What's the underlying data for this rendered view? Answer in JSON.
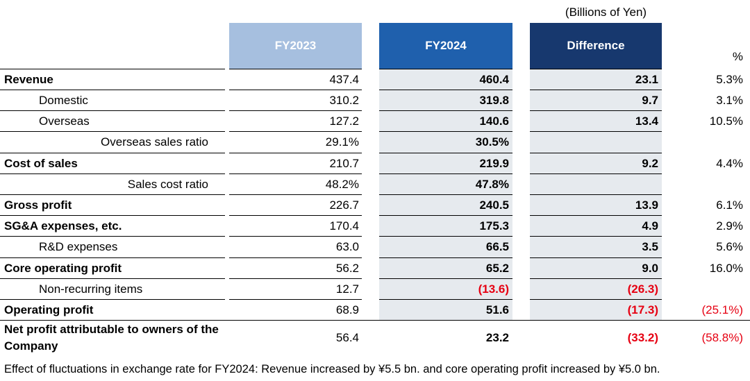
{
  "unit_label": "(Billions of Yen)",
  "columns": {
    "fy2023": "FY2023",
    "fy2024": "FY2024",
    "difference": "Difference",
    "percent": "%"
  },
  "rows": [
    {
      "label": "Revenue",
      "style": "bold",
      "fy2023": "437.4",
      "fy2024": "460.4",
      "diff": "23.1",
      "pct": "5.3%"
    },
    {
      "label": "Domestic",
      "style": "indent",
      "fy2023": "310.2",
      "fy2024": "319.8",
      "diff": "9.7",
      "pct": "3.1%"
    },
    {
      "label": "Overseas",
      "style": "indent",
      "fy2023": "127.2",
      "fy2024": "140.6",
      "diff": "13.4",
      "pct": "10.5%"
    },
    {
      "label": "Overseas sales ratio",
      "style": "right",
      "fy2023": "29.1%",
      "fy2024": "30.5%",
      "diff": "",
      "pct": ""
    },
    {
      "label": "Cost of sales",
      "style": "bold",
      "fy2023": "210.7",
      "fy2024": "219.9",
      "diff": "9.2",
      "pct": "4.4%"
    },
    {
      "label": "Sales cost ratio",
      "style": "right",
      "fy2023": "48.2%",
      "fy2024": "47.8%",
      "diff": "",
      "pct": ""
    },
    {
      "label": "Gross profit",
      "style": "bold",
      "fy2023": "226.7",
      "fy2024": "240.5",
      "diff": "13.9",
      "pct": "6.1%"
    },
    {
      "label": "SG&A expenses, etc.",
      "style": "bold",
      "fy2023": "170.4",
      "fy2024": "175.3",
      "diff": "4.9",
      "pct": "2.9%"
    },
    {
      "label": "R&D expenses",
      "style": "indent",
      "fy2023": "63.0",
      "fy2024": "66.5",
      "diff": "3.5",
      "pct": "5.6%"
    },
    {
      "label": "Core operating profit",
      "style": "bold",
      "fy2023": "56.2",
      "fy2024": "65.2",
      "diff": "9.0",
      "pct": "16.0%"
    },
    {
      "label": "Non-recurring items",
      "style": "indent",
      "fy2023": "12.7",
      "fy2024": "(13.6)",
      "diff": "(26.3)",
      "pct": ""
    },
    {
      "label": "Operating profit",
      "style": "bold",
      "fy2023": "68.9",
      "fy2024": "51.6",
      "diff": "(17.3)",
      "pct": "(25.1%)"
    },
    {
      "label": "Net profit attributable to owners of the Company",
      "style": "bold",
      "fy2023": "56.4",
      "fy2024": "23.2",
      "diff": "(33.2)",
      "pct": "(58.8%)"
    }
  ],
  "colors": {
    "fy2023_header": "#a6bfdf",
    "fy2024_header": "#1f60ad",
    "difference_header": "#17386e",
    "highlight_band": "#e6eaee",
    "negative": "#e60012"
  },
  "footnote": "Effect of fluctuations in exchange rate for FY2024: Revenue increased by ¥5.5 bn. and core operating profit increased by ¥5.0 bn."
}
